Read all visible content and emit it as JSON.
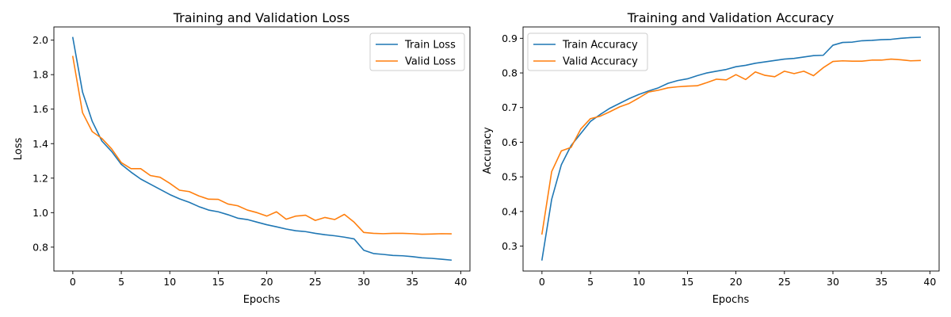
{
  "colors": {
    "train": "#1f77b4",
    "valid": "#ff7f0e"
  },
  "chart_data": [
    {
      "type": "line",
      "title": "Training and Validation Loss",
      "xlabel": "Epochs",
      "ylabel": "Loss",
      "xlim": [
        -1.95,
        40.95
      ],
      "ylim": [
        0.6615,
        2.0765
      ],
      "xticks": [
        0,
        5,
        10,
        15,
        20,
        25,
        30,
        35,
        40
      ],
      "yticks": [
        0.8,
        1.0,
        1.2,
        1.4,
        1.6,
        1.8,
        2.0
      ],
      "ytick_decimals": 1,
      "grid": false,
      "legend_position": "top-right",
      "x": [
        0,
        1,
        2,
        3,
        4,
        5,
        6,
        7,
        8,
        9,
        10,
        11,
        12,
        13,
        14,
        15,
        16,
        17,
        18,
        19,
        20,
        21,
        22,
        23,
        24,
        25,
        26,
        27,
        28,
        29,
        30,
        31,
        32,
        33,
        34,
        35,
        36,
        37,
        38,
        39
      ],
      "series": [
        {
          "name": "Train Loss",
          "color_key": "train",
          "values": [
            2.015,
            1.7,
            1.53,
            1.415,
            1.355,
            1.28,
            1.235,
            1.195,
            1.165,
            1.135,
            1.105,
            1.08,
            1.06,
            1.035,
            1.015,
            1.005,
            0.988,
            0.968,
            0.96,
            0.945,
            0.93,
            0.918,
            0.905,
            0.895,
            0.89,
            0.88,
            0.872,
            0.866,
            0.858,
            0.848,
            0.782,
            0.763,
            0.758,
            0.752,
            0.75,
            0.745,
            0.738,
            0.735,
            0.73,
            0.725
          ]
        },
        {
          "name": "Valid Loss",
          "color_key": "valid",
          "values": [
            1.905,
            1.58,
            1.47,
            1.43,
            1.37,
            1.29,
            1.255,
            1.255,
            1.215,
            1.205,
            1.17,
            1.13,
            1.122,
            1.097,
            1.078,
            1.077,
            1.05,
            1.04,
            1.015,
            1.0,
            0.98,
            1.005,
            0.962,
            0.98,
            0.985,
            0.955,
            0.972,
            0.96,
            0.99,
            0.945,
            0.885,
            0.88,
            0.878,
            0.88,
            0.88,
            0.878,
            0.875,
            0.876,
            0.878,
            0.877
          ]
        }
      ]
    },
    {
      "type": "line",
      "title": "Training and Validation Accuracy",
      "xlabel": "Epochs",
      "ylabel": "Accuracy",
      "xlim": [
        -1.95,
        40.95
      ],
      "ylim": [
        0.228,
        0.9328
      ],
      "xticks": [
        0,
        5,
        10,
        15,
        20,
        25,
        30,
        35,
        40
      ],
      "yticks": [
        0.3,
        0.4,
        0.5,
        0.6,
        0.7,
        0.8,
        0.9
      ],
      "ytick_decimals": 1,
      "grid": false,
      "legend_position": "top-left",
      "x": [
        0,
        1,
        2,
        3,
        4,
        5,
        6,
        7,
        8,
        9,
        10,
        11,
        12,
        13,
        14,
        15,
        16,
        17,
        18,
        19,
        20,
        21,
        22,
        23,
        24,
        25,
        26,
        27,
        28,
        29,
        30,
        31,
        32,
        33,
        34,
        35,
        36,
        37,
        38,
        39
      ],
      "series": [
        {
          "name": "Train Accuracy",
          "color_key": "train",
          "values": [
            0.26,
            0.435,
            0.535,
            0.59,
            0.625,
            0.66,
            0.68,
            0.698,
            0.712,
            0.726,
            0.738,
            0.748,
            0.757,
            0.77,
            0.778,
            0.783,
            0.792,
            0.8,
            0.805,
            0.81,
            0.818,
            0.822,
            0.828,
            0.832,
            0.836,
            0.84,
            0.842,
            0.846,
            0.85,
            0.851,
            0.88,
            0.888,
            0.889,
            0.893,
            0.894,
            0.896,
            0.897,
            0.9,
            0.902,
            0.903
          ]
        },
        {
          "name": "Valid Accuracy",
          "color_key": "valid",
          "values": [
            0.335,
            0.515,
            0.575,
            0.585,
            0.638,
            0.668,
            0.675,
            0.688,
            0.702,
            0.712,
            0.728,
            0.745,
            0.75,
            0.757,
            0.76,
            0.762,
            0.763,
            0.772,
            0.782,
            0.78,
            0.795,
            0.781,
            0.803,
            0.793,
            0.789,
            0.805,
            0.798,
            0.805,
            0.792,
            0.815,
            0.833,
            0.835,
            0.834,
            0.834,
            0.837,
            0.837,
            0.84,
            0.838,
            0.835,
            0.836
          ]
        }
      ]
    }
  ]
}
